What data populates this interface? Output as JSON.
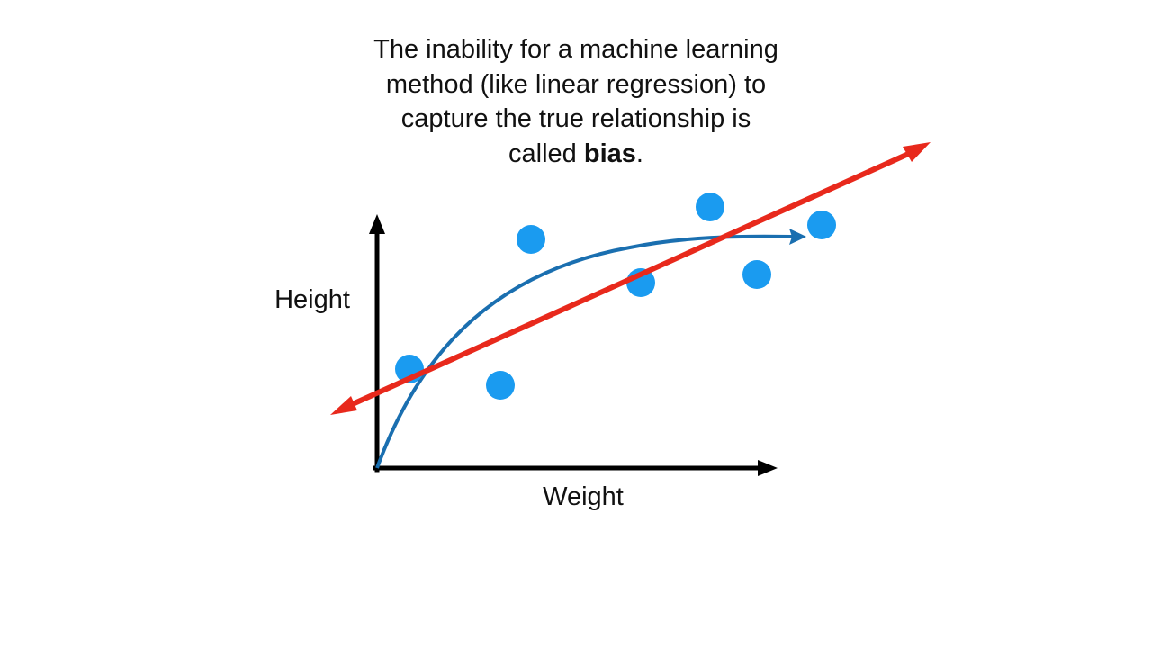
{
  "title": {
    "lines": [
      "The inability for a machine learning",
      "method (like linear regression) to",
      "capture the true relationship is"
    ],
    "last_line_prefix": "called ",
    "last_line_bold": "bias",
    "last_line_suffix": "."
  },
  "axes": {
    "y_label": "Height",
    "x_label": "Weight"
  },
  "colors": {
    "background": "#ffffff",
    "axis": "#000000",
    "points": "#1a9bf0",
    "true_curve": "#1a6fb0",
    "linear_fit": "#e8291c",
    "text": "#111111"
  },
  "legend": "none",
  "grid": false
}
